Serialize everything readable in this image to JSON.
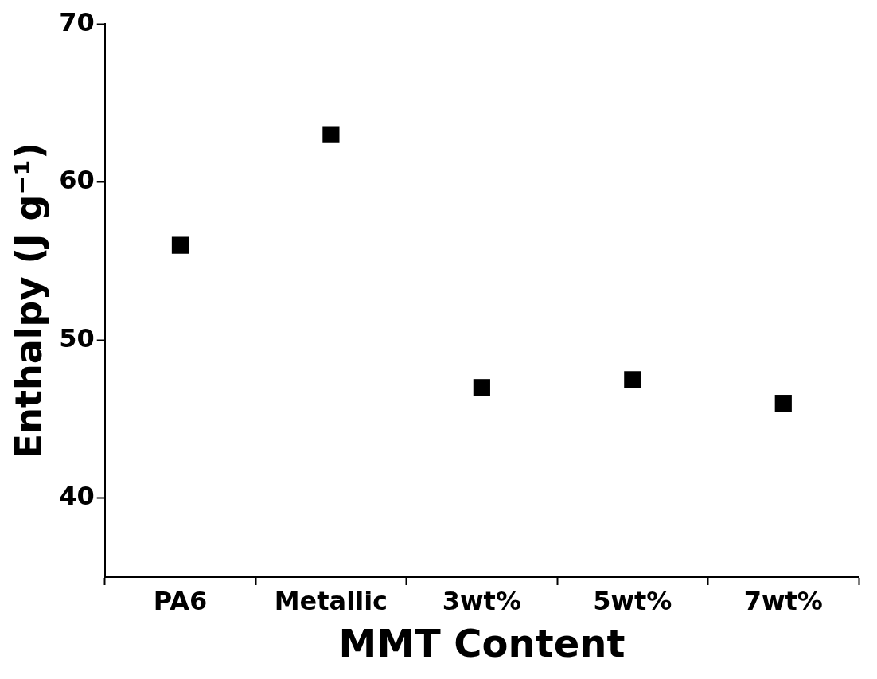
{
  "chart_data": {
    "type": "scatter",
    "xlabel": "MMT Content",
    "ylabel": "Enthalpy (J g⁻¹)",
    "categories": [
      "PA6",
      "Metallic",
      "3wt%",
      "5wt%",
      "7wt%"
    ],
    "series": [
      {
        "color": "#000000",
        "values": [
          56,
          63,
          47,
          47.5,
          46
        ]
      }
    ],
    "ylim": [
      35,
      70
    ],
    "yticks": [
      40,
      50,
      60,
      70
    ],
    "grid": false,
    "legend": false,
    "marker": "square"
  }
}
